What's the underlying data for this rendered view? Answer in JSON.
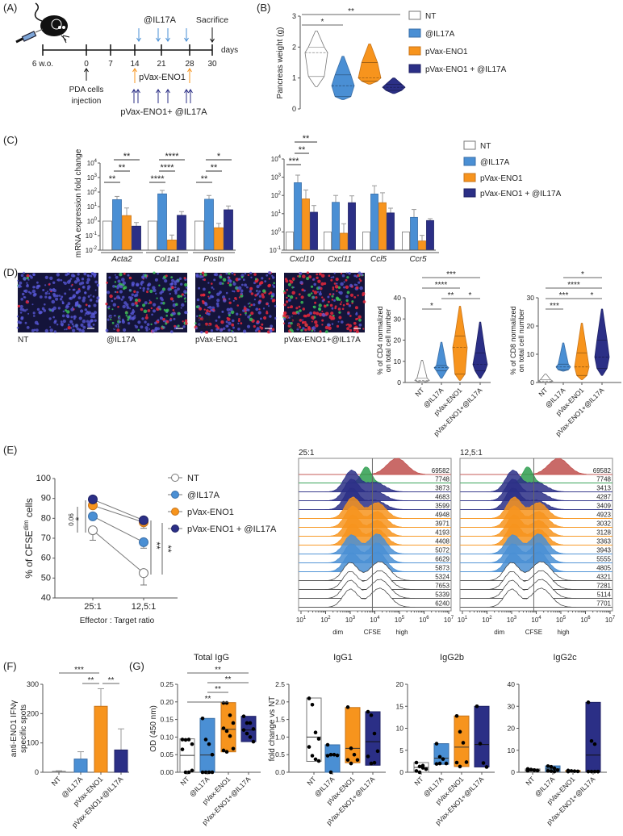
{
  "panel_labels": [
    "(A)",
    "(B)",
    "(C)",
    "(D)",
    "(E)",
    "(F)",
    "(G)"
  ],
  "colors": {
    "NT": "#ffffff",
    "IL17A": "#4a8fd4",
    "pVax": "#f7941d",
    "combo": "#2b2f86",
    "unstained": "#c0504d",
    "target": "#2e9e4f",
    "axis": "#555555"
  },
  "groups": [
    "NT",
    "@IL17A",
    "pVax-ENO1",
    "pVax-ENO1 + @IL17A"
  ],
  "groups_short": [
    "NT",
    "@IL17A",
    "pVax-ENO1",
    "pVax-ENO1+@IL17A"
  ],
  "timeline": {
    "ticks": [
      "6 w.o.",
      "0",
      "7",
      "14",
      "21",
      "28",
      "30"
    ],
    "unit": "days",
    "il17a": "@IL17A",
    "sacrifice": "Sacrifice",
    "pvax": "pVax-ENO1",
    "combo": "pVax-ENO1+ @IL17A",
    "injection": [
      "PDA cells",
      "injection"
    ]
  },
  "microscopy": {
    "labels": [
      "NT",
      "@IL17A",
      "pVax-ENO1",
      "pVax-ENO1+@IL17A"
    ],
    "channels": [
      "CD4",
      "CD8"
    ]
  },
  "chart_data": {
    "B": {
      "type": "violin",
      "ylabel": "Pancreas weight (g)",
      "ylim": [
        0,
        3
      ],
      "yticks": [
        "0",
        "1",
        "2",
        "3"
      ],
      "stats": [
        {
          "min": 0.72,
          "q1": 1.05,
          "median": 1.82,
          "q3": 2.0,
          "max": 2.52
        },
        {
          "min": 0.3,
          "q1": 0.4,
          "median": 0.75,
          "q3": 1.1,
          "max": 1.7
        },
        {
          "min": 0.8,
          "q1": 0.9,
          "median": 1.0,
          "q3": 1.5,
          "max": 2.1
        },
        {
          "min": 0.5,
          "q1": 0.6,
          "median": 0.7,
          "q3": 0.8,
          "max": 1.0
        }
      ],
      "sig": [
        {
          "from": 0,
          "to": 1,
          "label": "*",
          "level": 0
        },
        {
          "from": 0,
          "to": 3,
          "label": "**",
          "level": 1
        }
      ],
      "legend": "top-right"
    },
    "C_left": {
      "type": "bar",
      "yscale": "log",
      "ylabel": "mRNA expression fold change",
      "ylim_exp": [
        -2,
        4
      ],
      "yticks_exp": [
        -2,
        -1,
        0,
        1,
        2,
        3,
        4
      ],
      "categories": [
        "Acta2",
        "Col1a1",
        "Postn"
      ],
      "series": [
        {
          "name": "NT",
          "values": [
            1,
            1,
            1
          ],
          "err_upper": [
            1,
            1,
            1
          ]
        },
        {
          "name": "@IL17A",
          "values": [
            30,
            75,
            32
          ],
          "err_upper": [
            50,
            130,
            58
          ]
        },
        {
          "name": "pVax-ENO1",
          "values": [
            2.4,
            0.05,
            0.35
          ],
          "err_upper": [
            8,
            0.11,
            0.7
          ]
        },
        {
          "name": "pVax-ENO1 + @IL17A",
          "values": [
            0.45,
            2.5,
            6
          ],
          "err_upper": [
            0.8,
            4.5,
            11
          ]
        }
      ],
      "sig": [
        {
          "cat": 0,
          "from": 0,
          "to": 1,
          "label": "**",
          "level": 0
        },
        {
          "cat": 0,
          "from": 1,
          "to": 2,
          "label": "**",
          "level": 1
        },
        {
          "cat": 0,
          "from": 1,
          "to": 3,
          "label": "**",
          "level": 2
        },
        {
          "cat": 1,
          "from": 0,
          "to": 1,
          "label": "****",
          "level": 0
        },
        {
          "cat": 1,
          "from": 1,
          "to": 2,
          "label": "****",
          "level": 1
        },
        {
          "cat": 1,
          "from": 1,
          "to": 3,
          "label": "****",
          "level": 2
        },
        {
          "cat": 2,
          "from": 0,
          "to": 1,
          "label": "**",
          "level": 0
        },
        {
          "cat": 2,
          "from": 1,
          "to": 2,
          "label": "**",
          "level": 1
        },
        {
          "cat": 2,
          "from": 1,
          "to": 3,
          "label": "*",
          "level": 2
        }
      ]
    },
    "C_right": {
      "type": "bar",
      "yscale": "log",
      "ylim_exp": [
        -1,
        4
      ],
      "yticks_exp": [
        -1,
        0,
        1,
        2,
        3,
        4
      ],
      "categories": [
        "Cxcl10",
        "Cxcl11",
        "Ccl5",
        "Ccr5"
      ],
      "series": [
        {
          "name": "NT",
          "values": [
            1,
            1,
            1,
            1
          ],
          "err_upper": [
            1,
            1,
            1,
            1
          ]
        },
        {
          "name": "@IL17A",
          "values": [
            500,
            42,
            120,
            6.3
          ],
          "err_upper": [
            1300,
            100,
            340,
            17
          ]
        },
        {
          "name": "pVax-ENO1",
          "values": [
            65,
            0.85,
            40,
            0.32
          ],
          "err_upper": [
            200,
            2.8,
            140,
            0.65
          ]
        },
        {
          "name": "pVax-ENO1 + @IL17A",
          "values": [
            12,
            40,
            11,
            4.2
          ],
          "err_upper": [
            28,
            95,
            20,
            5.3
          ]
        }
      ],
      "sig": [
        {
          "cat": 0,
          "from": 0,
          "to": 1,
          "label": "***",
          "level": 0
        },
        {
          "cat": 0,
          "from": 1,
          "to": 2,
          "label": "**",
          "level": 1
        },
        {
          "cat": 0,
          "from": 1,
          "to": 3,
          "label": "**",
          "level": 2
        }
      ],
      "legend": "right"
    },
    "D_CD4": {
      "type": "violin",
      "ylabel": [
        "% of CD4 normalized",
        "on total cell number"
      ],
      "ylim": [
        0,
        40
      ],
      "yticks": [
        "0",
        "10",
        "20",
        "30",
        "40"
      ],
      "stats": [
        {
          "min": 0,
          "q1": 0.5,
          "median": 1,
          "q3": 2,
          "max": 10.5
        },
        {
          "min": 2,
          "q1": 5.5,
          "median": 7,
          "q3": 8,
          "max": 19
        },
        {
          "min": 1,
          "q1": 4,
          "median": 16.5,
          "q3": 22,
          "max": 36
        },
        {
          "min": 2,
          "q1": 5.5,
          "median": 8.5,
          "q3": 14,
          "max": 28.5
        }
      ],
      "sig": [
        {
          "from": 0,
          "to": 1,
          "label": "*",
          "level": 0
        },
        {
          "from": 1,
          "to": 2,
          "label": "**",
          "level": 1
        },
        {
          "from": 2,
          "to": 3,
          "label": "*",
          "level": 1
        },
        {
          "from": 0,
          "to": 2,
          "label": "****",
          "level": 2
        },
        {
          "from": 0,
          "to": 3,
          "label": "***",
          "level": 3
        }
      ]
    },
    "D_CD8": {
      "type": "violin",
      "ylabel": [
        "% of CD8 normalized",
        "on total cell number"
      ],
      "ylim": [
        0,
        30
      ],
      "yticks": [
        "0",
        "10",
        "20",
        "30"
      ],
      "stats": [
        {
          "min": 0,
          "q1": 0.2,
          "median": 0.5,
          "q3": 1,
          "max": 3
        },
        {
          "min": 4,
          "q1": 4.5,
          "median": 5.5,
          "q3": 6.5,
          "max": 14
        },
        {
          "min": 1,
          "q1": 2.5,
          "median": 5.5,
          "q3": 10.5,
          "max": 21
        },
        {
          "min": 2.5,
          "q1": 5,
          "median": 9,
          "q3": 15,
          "max": 26
        }
      ],
      "sig": [
        {
          "from": 0,
          "to": 1,
          "label": "***",
          "level": 0
        },
        {
          "from": 0,
          "to": 2,
          "label": "***",
          "level": 1
        },
        {
          "from": 2,
          "to": 3,
          "label": "*",
          "level": 1
        },
        {
          "from": 0,
          "to": 3,
          "label": "****",
          "level": 2
        },
        {
          "from": 1,
          "to": 3,
          "label": "*",
          "level": 3
        }
      ]
    },
    "E_line": {
      "type": "line",
      "ylabel_main": "% of CFSE",
      "ylabel_sup": "dim",
      "ylabel_end": " cells",
      "xlabel": "Effector : Target ratio",
      "x": [
        "25:1",
        "12,5:1"
      ],
      "ylim": [
        40,
        100
      ],
      "yticks": [
        "40",
        "50",
        "60",
        "70",
        "80",
        "90",
        "100"
      ],
      "series": [
        {
          "name": "NT",
          "values": [
            74,
            52.5
          ],
          "err": [
            5,
            6
          ]
        },
        {
          "name": "@IL17A",
          "values": [
            81,
            68
          ],
          "err": [
            1.5,
            3
          ]
        },
        {
          "name": "pVax-ENO1",
          "values": [
            86.5,
            78
          ],
          "err": [
            1,
            3
          ]
        },
        {
          "name": "pVax-ENO1 + @IL17A",
          "values": [
            89.5,
            79
          ],
          "err": [
            1,
            1
          ]
        }
      ],
      "sig_left": [
        {
          "label": "0.06"
        },
        {
          "label": "*"
        }
      ],
      "sig_right": [
        {
          "label": "**"
        },
        {
          "label": "**"
        }
      ],
      "legend": "right"
    },
    "E_hist": {
      "type": "histogram",
      "xlabel": "CFSE",
      "xregions": [
        "dim",
        "high"
      ],
      "xticks_exp": [
        1,
        2,
        3,
        4,
        5,
        6,
        7
      ],
      "row_groups": [
        "unstained",
        "target",
        "combo",
        "combo",
        "combo",
        "pVax",
        "pVax",
        "pVax",
        "pVax",
        "IL17A",
        "IL17A",
        "IL17A",
        "NT",
        "NT",
        "NT",
        "NT"
      ],
      "panels": [
        {
          "title": "25:1",
          "values": [
            "69582",
            "7748",
            "3873",
            "4683",
            "3599",
            "4948",
            "3971",
            "4193",
            "4408",
            "5072",
            "6629",
            "5873",
            "5324",
            "7653",
            "5339",
            "6240"
          ]
        },
        {
          "title": "12,5:1",
          "values": [
            "69582",
            "7748",
            "3413",
            "4287",
            "3409",
            "4923",
            "3032",
            "3128",
            "3363",
            "3943",
            "5555",
            "4805",
            "4321",
            "7281",
            "5114",
            "7701"
          ]
        }
      ]
    },
    "F": {
      "type": "bar",
      "ylabel": [
        "anti-ENO1 IFNγ",
        "specific spots"
      ],
      "ylim": [
        0,
        300
      ],
      "yticks": [
        "0",
        "100",
        "200",
        "300"
      ],
      "values": [
        3,
        45,
        225,
        76
      ],
      "err_upper": [
        5,
        70,
        285,
        148
      ],
      "sig": [
        {
          "from": 0,
          "to": 2,
          "label": "***",
          "level": 1
        },
        {
          "from": 1,
          "to": 2,
          "label": "**",
          "level": 0
        },
        {
          "from": 2,
          "to": 3,
          "label": "**",
          "level": 0
        }
      ]
    },
    "G": [
      {
        "title": "Total IgG",
        "ylabel": "OD (450 nm)",
        "ylim": [
          0,
          0.25
        ],
        "yticks": [
          "0.00",
          "0.05",
          "0.10",
          "0.15",
          "0.20",
          "0.25"
        ],
        "boxes": [
          {
            "min": 0,
            "max": 0.095,
            "median": 0.048,
            "points": [
              0.093,
              0.092,
              0.093,
              0.08,
              0.065,
              0,
              0,
              0.005
            ]
          },
          {
            "min": 0,
            "max": 0.153,
            "median": 0.049,
            "points": [
              0.153,
              0.093,
              0.08,
              0.05,
              0,
              0,
              0,
              0
            ]
          },
          {
            "min": 0.058,
            "max": 0.198,
            "median": 0.122,
            "points": [
              0.197,
              0.197,
              0.162,
              0.14,
              0.125,
              0.117,
              0.103,
              0.067,
              0.062,
              0.058
            ]
          },
          {
            "min": 0.087,
            "max": 0.159,
            "median": 0.12,
            "points": [
              0.159,
              0.14,
              0.14,
              0.123,
              0.12,
              0.11,
              0.1,
              0.087
            ]
          }
        ],
        "sig": [
          {
            "from": 0,
            "to": 2,
            "label": "**",
            "level": 0
          },
          {
            "from": 1,
            "to": 2,
            "label": "**",
            "level": 1
          },
          {
            "from": 1,
            "to": 3,
            "label": "**",
            "level": 2
          },
          {
            "from": 0,
            "to": 3,
            "label": "**",
            "level": 3
          }
        ]
      },
      {
        "title": "IgG1",
        "ylabel": "fold change vs NT",
        "ylim": [
          0,
          2.5
        ],
        "yticks": [
          "0.0",
          "0.5",
          "1.0",
          "1.5",
          "2.0",
          "2.5"
        ],
        "boxes": [
          {
            "min": 0.31,
            "max": 2.11,
            "median": 1.0,
            "points": [
              2.1,
              1.92,
              1.13,
              0.95,
              0.72,
              0.47,
              0.37,
              0.32
            ]
          },
          {
            "min": 0,
            "max": 0.78,
            "median": 0.5,
            "points": [
              0.78,
              0.5,
              0.5,
              0.48,
              0.47,
              0
            ]
          },
          {
            "min": 0.27,
            "max": 1.84,
            "median": 0.68,
            "points": [
              1.85,
              0.68,
              0.5,
              0.35,
              0.35,
              0.25
            ]
          },
          {
            "min": 0.2,
            "max": 1.72,
            "median": 0.87,
            "points": [
              1.72,
              1.62,
              1.1,
              0.6,
              0.45,
              0.25,
              0.27
            ]
          }
        ],
        "sig": []
      },
      {
        "title": "IgG2b",
        "ylabel": "",
        "ylim": [
          0,
          20
        ],
        "yticks": [
          "0",
          "5",
          "10",
          "15",
          "20"
        ],
        "boxes": [
          {
            "min": 0,
            "max": 2.2,
            "median": 1.1,
            "points": [
              2.2,
              1.3,
              1.0,
              0.7,
              0.3,
              0,
              1.5
            ]
          },
          {
            "min": 1.8,
            "max": 6.5,
            "median": 3.2,
            "points": [
              6.5,
              3.5,
              3,
              2,
              1.9,
              2
            ]
          },
          {
            "min": 1.3,
            "max": 12.8,
            "median": 5.7,
            "points": [
              12.8,
              9.2,
              6.7,
              2.3,
              2.2,
              1.3
            ]
          },
          {
            "min": 1.2,
            "max": 15,
            "median": 6.3,
            "points": [
              15,
              6.5,
              2.1,
              1.2
            ]
          }
        ],
        "sig": []
      },
      {
        "title": "IgG2c",
        "ylabel": "",
        "ylim": [
          0,
          40
        ],
        "yticks": [
          "0",
          "10",
          "20",
          "30",
          "40"
        ],
        "boxes": [
          {
            "min": 0.5,
            "max": 1.5,
            "median": 1.0,
            "points": [
              1.5,
              1.2,
              1,
              0.8,
              0.7,
              1.1,
              0.9
            ]
          },
          {
            "min": 0.3,
            "max": 2.9,
            "median": 1.5,
            "points": [
              2.8,
              2.5,
              1.8,
              1,
              0.6,
              0.5,
              0.3
            ]
          },
          {
            "min": 0.3,
            "max": 0.8,
            "median": 0.5,
            "points": [
              0.8,
              0.6,
              0.5,
              0.4,
              0.3
            ]
          },
          {
            "min": 0.3,
            "max": 31.8,
            "median": 7.8,
            "points": [
              31.8,
              14.2,
              12.8,
              0.3,
              0.3,
              0.3,
              0.3,
              0.3
            ]
          }
        ],
        "sig": []
      }
    ]
  }
}
